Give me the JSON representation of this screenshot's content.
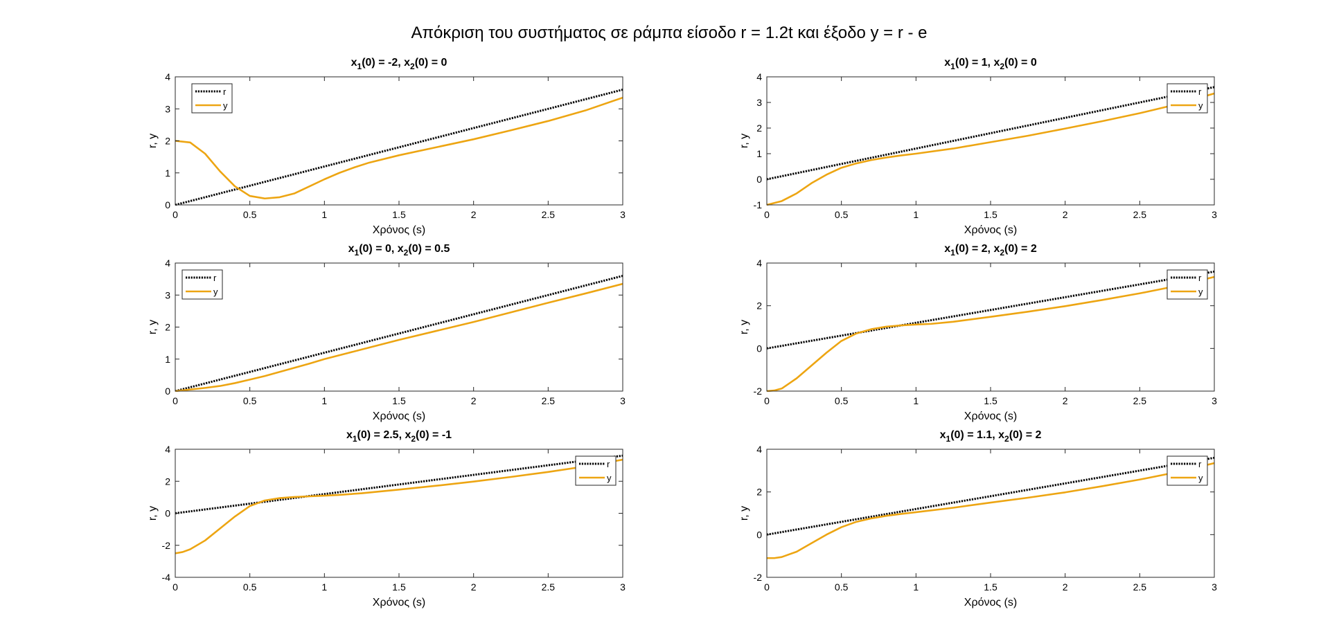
{
  "figure_title": "Απόκριση του συστήματος σε ράμπα είσοδο r = 1.2t και έξοδο y = r - e",
  "colors": {
    "r": "#000000",
    "y": "#EDA512",
    "axes": "#262626"
  },
  "chart_data": [
    {
      "type": "line",
      "title_parts": [
        [
          "x",
          false
        ],
        [
          "1",
          true
        ],
        [
          "(0) = -2, x",
          false
        ],
        [
          "2",
          true
        ],
        [
          "(0) = 0",
          false
        ]
      ],
      "xlabel": "Χρόνος (s)",
      "ylabel": "r, y",
      "xlim": [
        0,
        3
      ],
      "ylim": [
        0,
        4
      ],
      "xticks": [
        0,
        0.5,
        1,
        1.5,
        2,
        2.5,
        3
      ],
      "xtick_labels": [
        "0",
        "0.5",
        "1",
        "1.5",
        "2",
        "2.5",
        "3"
      ],
      "yticks": [
        0,
        1,
        2,
        3,
        4
      ],
      "ytick_labels": [
        "0",
        "1",
        "2",
        "3",
        "4"
      ],
      "legend_position": "top-left",
      "grid": false,
      "series": [
        {
          "name": "r",
          "style": "dotted",
          "color": "#000000",
          "x": [
            0,
            3
          ],
          "y": [
            0,
            3.6
          ]
        },
        {
          "name": "y",
          "style": "solid",
          "color": "#EDA512",
          "x": [
            0,
            0.1,
            0.2,
            0.3,
            0.4,
            0.5,
            0.6,
            0.7,
            0.8,
            0.9,
            1.0,
            1.1,
            1.2,
            1.3,
            1.5,
            1.75,
            2.0,
            2.25,
            2.5,
            2.75,
            3.0
          ],
          "y": [
            2.0,
            1.95,
            1.6,
            1.05,
            0.58,
            0.28,
            0.2,
            0.24,
            0.36,
            0.58,
            0.8,
            1.0,
            1.17,
            1.32,
            1.55,
            1.8,
            2.05,
            2.33,
            2.62,
            2.95,
            3.35
          ]
        }
      ]
    },
    {
      "type": "line",
      "title_parts": [
        [
          "x",
          false
        ],
        [
          "1",
          true
        ],
        [
          "(0) = 1, x",
          false
        ],
        [
          "2",
          true
        ],
        [
          "(0) = 0",
          false
        ]
      ],
      "xlabel": "Χρόνος (s)",
      "ylabel": "r, y",
      "xlim": [
        0,
        3
      ],
      "ylim": [
        -1,
        4
      ],
      "xticks": [
        0,
        0.5,
        1,
        1.5,
        2,
        2.5,
        3
      ],
      "xtick_labels": [
        "0",
        "0.5",
        "1",
        "1.5",
        "2",
        "2.5",
        "3"
      ],
      "yticks": [
        -1,
        0,
        1,
        2,
        3,
        4
      ],
      "ytick_labels": [
        "-1",
        "0",
        "1",
        "2",
        "3",
        "4"
      ],
      "legend_position": "top-right",
      "grid": false,
      "series": [
        {
          "name": "r",
          "style": "dotted",
          "color": "#000000",
          "x": [
            0,
            3
          ],
          "y": [
            0,
            3.6
          ]
        },
        {
          "name": "y",
          "style": "solid",
          "color": "#EDA512",
          "x": [
            0,
            0.1,
            0.2,
            0.3,
            0.4,
            0.5,
            0.6,
            0.7,
            0.8,
            0.9,
            1.0,
            1.25,
            1.5,
            1.75,
            2.0,
            2.25,
            2.5,
            2.75,
            3.0
          ],
          "y": [
            -1.0,
            -0.85,
            -0.55,
            -0.15,
            0.18,
            0.45,
            0.62,
            0.75,
            0.85,
            0.93,
            1.0,
            1.2,
            1.45,
            1.7,
            1.98,
            2.27,
            2.58,
            2.93,
            3.35
          ]
        }
      ]
    },
    {
      "type": "line",
      "title_parts": [
        [
          "x",
          false
        ],
        [
          "1",
          true
        ],
        [
          "(0) = 0, x",
          false
        ],
        [
          "2",
          true
        ],
        [
          "(0) = 0.5",
          false
        ]
      ],
      "xlabel": "Χρόνος (s)",
      "ylabel": "r, y",
      "xlim": [
        0,
        3
      ],
      "ylim": [
        0,
        4
      ],
      "xticks": [
        0,
        0.5,
        1,
        1.5,
        2,
        2.5,
        3
      ],
      "xtick_labels": [
        "0",
        "0.5",
        "1",
        "1.5",
        "2",
        "2.5",
        "3"
      ],
      "yticks": [
        0,
        1,
        2,
        3,
        4
      ],
      "ytick_labels": [
        "0",
        "1",
        "2",
        "3",
        "4"
      ],
      "legend_position": "top-left",
      "grid": false,
      "series": [
        {
          "name": "r",
          "style": "dotted",
          "color": "#000000",
          "x": [
            0,
            3
          ],
          "y": [
            0,
            3.6
          ]
        },
        {
          "name": "y",
          "style": "solid",
          "color": "#EDA512",
          "x": [
            0,
            0.1,
            0.2,
            0.3,
            0.4,
            0.5,
            0.6,
            0.7,
            0.8,
            0.9,
            1.0,
            1.25,
            1.5,
            1.75,
            2.0,
            2.25,
            2.5,
            2.75,
            3.0
          ],
          "y": [
            0.0,
            0.05,
            0.1,
            0.16,
            0.25,
            0.36,
            0.47,
            0.6,
            0.73,
            0.86,
            1.0,
            1.3,
            1.6,
            1.88,
            2.16,
            2.46,
            2.76,
            3.05,
            3.35
          ]
        }
      ]
    },
    {
      "type": "line",
      "title_parts": [
        [
          "x",
          false
        ],
        [
          "1",
          true
        ],
        [
          "(0) = 2, x",
          false
        ],
        [
          "2",
          true
        ],
        [
          "(0) = 2",
          false
        ]
      ],
      "xlabel": "Χρόνος (s)",
      "ylabel": "r, y",
      "xlim": [
        0,
        3
      ],
      "ylim": [
        -2,
        4
      ],
      "xticks": [
        0,
        0.5,
        1,
        1.5,
        2,
        2.5,
        3
      ],
      "xtick_labels": [
        "0",
        "0.5",
        "1",
        "1.5",
        "2",
        "2.5",
        "3"
      ],
      "yticks": [
        -2,
        0,
        2,
        4
      ],
      "ytick_labels": [
        "-2",
        "0",
        "2",
        "4"
      ],
      "legend_position": "top-right",
      "grid": false,
      "series": [
        {
          "name": "r",
          "style": "dotted",
          "color": "#000000",
          "x": [
            0,
            3
          ],
          "y": [
            0,
            3.6
          ]
        },
        {
          "name": "y",
          "style": "solid",
          "color": "#EDA512",
          "x": [
            0,
            0.05,
            0.1,
            0.2,
            0.3,
            0.4,
            0.5,
            0.6,
            0.7,
            0.8,
            0.9,
            1.0,
            1.1,
            1.25,
            1.5,
            1.75,
            2.0,
            2.25,
            2.5,
            2.75,
            3.0
          ],
          "y": [
            -2.0,
            -1.97,
            -1.88,
            -1.4,
            -0.8,
            -0.2,
            0.35,
            0.7,
            0.9,
            1.02,
            1.08,
            1.12,
            1.15,
            1.25,
            1.48,
            1.72,
            1.98,
            2.27,
            2.58,
            2.93,
            3.35
          ]
        }
      ]
    },
    {
      "type": "line",
      "title_parts": [
        [
          "x",
          false
        ],
        [
          "1",
          true
        ],
        [
          "(0) = 2.5, x",
          false
        ],
        [
          "2",
          true
        ],
        [
          "(0) = -1",
          false
        ]
      ],
      "xlabel": "Χρόνος (s)",
      "ylabel": "r, y",
      "xlim": [
        0,
        3
      ],
      "ylim": [
        -4,
        4
      ],
      "xticks": [
        0,
        0.5,
        1,
        1.5,
        2,
        2.5,
        3
      ],
      "xtick_labels": [
        "0",
        "0.5",
        "1",
        "1.5",
        "2",
        "2.5",
        "3"
      ],
      "yticks": [
        -4,
        -2,
        0,
        2,
        4
      ],
      "ytick_labels": [
        "-4",
        "-2",
        "0",
        "2",
        "4"
      ],
      "legend_position": "top-right",
      "grid": false,
      "series": [
        {
          "name": "r",
          "style": "dotted",
          "color": "#000000",
          "x": [
            0,
            3
          ],
          "y": [
            0,
            3.6
          ]
        },
        {
          "name": "y",
          "style": "solid",
          "color": "#EDA512",
          "x": [
            0,
            0.05,
            0.1,
            0.2,
            0.3,
            0.4,
            0.5,
            0.6,
            0.7,
            0.8,
            0.9,
            1.0,
            1.1,
            1.25,
            1.5,
            1.75,
            2.0,
            2.25,
            2.5,
            2.75,
            3.0
          ],
          "y": [
            -2.5,
            -2.42,
            -2.25,
            -1.7,
            -0.95,
            -0.2,
            0.45,
            0.8,
            0.95,
            1.02,
            1.06,
            1.1,
            1.15,
            1.25,
            1.48,
            1.72,
            1.98,
            2.27,
            2.58,
            2.93,
            3.35
          ]
        }
      ]
    },
    {
      "type": "line",
      "title_parts": [
        [
          "x",
          false
        ],
        [
          "1",
          true
        ],
        [
          "(0) = 1.1, x",
          false
        ],
        [
          "2",
          true
        ],
        [
          "(0) = 2",
          false
        ]
      ],
      "xlabel": "Χρόνος (s)",
      "ylabel": "r, y",
      "xlim": [
        0,
        3
      ],
      "ylim": [
        -2,
        4
      ],
      "xticks": [
        0,
        0.5,
        1,
        1.5,
        2,
        2.5,
        3
      ],
      "xtick_labels": [
        "0",
        "0.5",
        "1",
        "1.5",
        "2",
        "2.5",
        "3"
      ],
      "yticks": [
        -2,
        0,
        2,
        4
      ],
      "ytick_labels": [
        "-2",
        "0",
        "2",
        "4"
      ],
      "legend_position": "top-right",
      "grid": false,
      "series": [
        {
          "name": "r",
          "style": "dotted",
          "color": "#000000",
          "x": [
            0,
            3
          ],
          "y": [
            0,
            3.6
          ]
        },
        {
          "name": "y",
          "style": "solid",
          "color": "#EDA512",
          "x": [
            0,
            0.05,
            0.1,
            0.2,
            0.3,
            0.4,
            0.5,
            0.6,
            0.7,
            0.8,
            0.9,
            1.0,
            1.25,
            1.5,
            1.75,
            2.0,
            2.25,
            2.5,
            2.75,
            3.0
          ],
          "y": [
            -1.1,
            -1.1,
            -1.05,
            -0.8,
            -0.4,
            0.0,
            0.35,
            0.6,
            0.76,
            0.88,
            0.97,
            1.05,
            1.26,
            1.5,
            1.73,
            1.98,
            2.27,
            2.58,
            2.93,
            3.35
          ]
        }
      ]
    }
  ]
}
